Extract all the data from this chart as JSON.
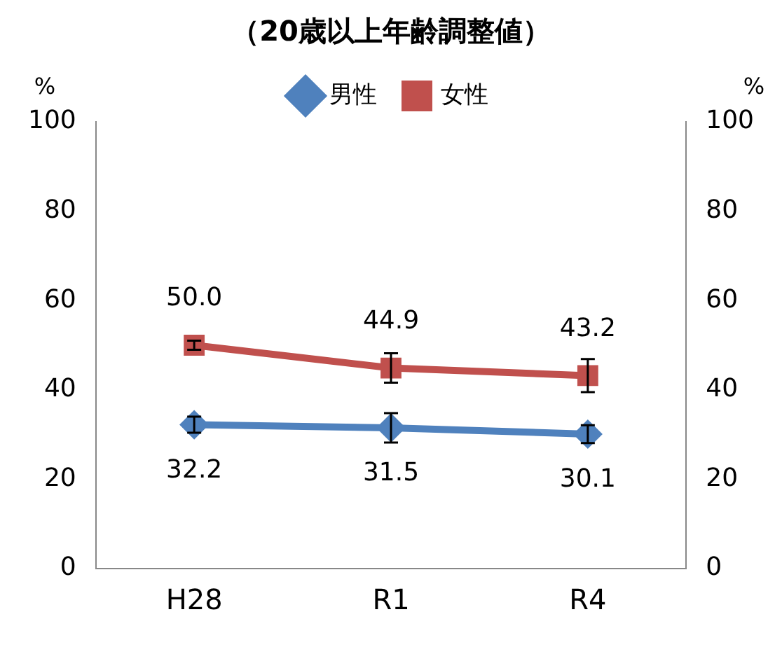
{
  "chart_data": {
    "type": "line",
    "title": "（20歳以上年齢調整値）",
    "ylabel": "%",
    "y2label": "%",
    "categories": [
      "H28",
      "R1",
      "R4"
    ],
    "series": [
      {
        "name": "男性",
        "color": "#4f81bd",
        "marker": "diamond",
        "values": [
          32.2,
          31.5,
          30.1
        ],
        "value_labels": [
          "32.2",
          "31.5",
          "30.1"
        ],
        "errors": [
          1.8,
          3.3,
          2.0
        ]
      },
      {
        "name": "女性",
        "color": "#c0504d",
        "marker": "square",
        "values": [
          50.0,
          44.9,
          43.2
        ],
        "value_labels": [
          "50.0",
          "44.9",
          "43.2"
        ],
        "errors": [
          1.0,
          3.3,
          3.7
        ]
      }
    ],
    "ylim": [
      0,
      100
    ],
    "yticks": [
      0,
      20,
      40,
      60,
      80,
      100
    ],
    "y2lim": [
      0,
      100
    ],
    "y2ticks": [
      0,
      20,
      40,
      60,
      80,
      100
    ],
    "legend": "top",
    "grid": false
  }
}
